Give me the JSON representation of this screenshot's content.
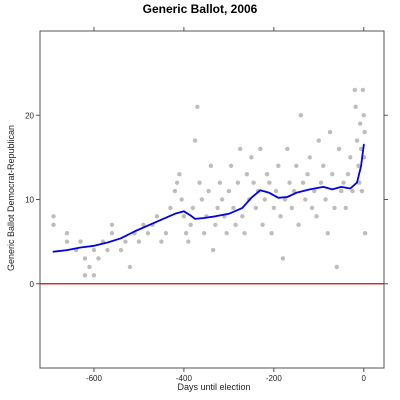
{
  "chart_data": {
    "type": "scatter",
    "title": "Generic Ballot, 2006",
    "xlabel": "Days until election",
    "ylabel": "Generic Ballot Democrat-Republican",
    "xlim": [
      -720,
      45
    ],
    "ylim": [
      -10,
      30
    ],
    "xticks": [
      -600,
      -400,
      -200,
      0
    ],
    "yticks": [
      0,
      10,
      20
    ],
    "grid": false,
    "legend": "none",
    "reference_line": {
      "y": 0,
      "color": "#e00000"
    },
    "colors": {
      "points": "#bdbdbd",
      "trend": "#0000ee",
      "axes": "#555555"
    },
    "series": [
      {
        "type": "scatter",
        "points": [
          [
            -690,
            8
          ],
          [
            -690,
            7
          ],
          [
            -660,
            6
          ],
          [
            -660,
            5
          ],
          [
            -640,
            4
          ],
          [
            -630,
            5
          ],
          [
            -620,
            1
          ],
          [
            -620,
            3
          ],
          [
            -610,
            2
          ],
          [
            -600,
            4
          ],
          [
            -600,
            1
          ],
          [
            -590,
            3
          ],
          [
            -580,
            5
          ],
          [
            -570,
            4
          ],
          [
            -560,
            6
          ],
          [
            -560,
            7
          ],
          [
            -540,
            4
          ],
          [
            -530,
            5
          ],
          [
            -520,
            2
          ],
          [
            -510,
            6
          ],
          [
            -500,
            5
          ],
          [
            -490,
            7
          ],
          [
            -480,
            6
          ],
          [
            -470,
            7
          ],
          [
            -460,
            8
          ],
          [
            -450,
            5
          ],
          [
            -440,
            6
          ],
          [
            -430,
            9
          ],
          [
            -420,
            11
          ],
          [
            -415,
            12
          ],
          [
            -410,
            13
          ],
          [
            -405,
            10
          ],
          [
            -400,
            8
          ],
          [
            -395,
            6
          ],
          [
            -390,
            5
          ],
          [
            -385,
            7
          ],
          [
            -380,
            9
          ],
          [
            -375,
            17
          ],
          [
            -370,
            21
          ],
          [
            -365,
            12
          ],
          [
            -360,
            10
          ],
          [
            -355,
            6
          ],
          [
            -350,
            8
          ],
          [
            -345,
            11
          ],
          [
            -340,
            14
          ],
          [
            -335,
            4
          ],
          [
            -330,
            7
          ],
          [
            -325,
            9
          ],
          [
            -320,
            12
          ],
          [
            -315,
            10
          ],
          [
            -310,
            8
          ],
          [
            -305,
            6
          ],
          [
            -300,
            11
          ],
          [
            -295,
            14
          ],
          [
            -290,
            9
          ],
          [
            -285,
            7
          ],
          [
            -280,
            12
          ],
          [
            -275,
            16
          ],
          [
            -270,
            8
          ],
          [
            -265,
            6
          ],
          [
            -260,
            13
          ],
          [
            -255,
            10
          ],
          [
            -250,
            15
          ],
          [
            -245,
            12
          ],
          [
            -240,
            9
          ],
          [
            -235,
            11
          ],
          [
            -230,
            16
          ],
          [
            -225,
            7
          ],
          [
            -220,
            10
          ],
          [
            -215,
            13
          ],
          [
            -210,
            12
          ],
          [
            -205,
            6
          ],
          [
            -200,
            9
          ],
          [
            -195,
            11
          ],
          [
            -190,
            14
          ],
          [
            -185,
            8
          ],
          [
            -180,
            3
          ],
          [
            -175,
            10
          ],
          [
            -170,
            16
          ],
          [
            -165,
            12
          ],
          [
            -160,
            9
          ],
          [
            -155,
            11
          ],
          [
            -150,
            14
          ],
          [
            -145,
            7
          ],
          [
            -140,
            20
          ],
          [
            -135,
            12
          ],
          [
            -130,
            10
          ],
          [
            -125,
            13
          ],
          [
            -120,
            15
          ],
          [
            -115,
            9
          ],
          [
            -110,
            11
          ],
          [
            -105,
            8
          ],
          [
            -100,
            17
          ],
          [
            -95,
            12
          ],
          [
            -90,
            14
          ],
          [
            -85,
            10
          ],
          [
            -80,
            6
          ],
          [
            -75,
            18
          ],
          [
            -70,
            13
          ],
          [
            -65,
            9
          ],
          [
            -60,
            2
          ],
          [
            -55,
            16
          ],
          [
            -50,
            11
          ],
          [
            -45,
            12
          ],
          [
            -40,
            9
          ],
          [
            -35,
            13
          ],
          [
            -30,
            15
          ],
          [
            -25,
            11
          ],
          [
            -20,
            23
          ],
          [
            -18,
            21
          ],
          [
            -15,
            17
          ],
          [
            -12,
            14
          ],
          [
            -10,
            12
          ],
          [
            -8,
            19
          ],
          [
            -6,
            16
          ],
          [
            -4,
            11
          ],
          [
            -2,
            23
          ],
          [
            0,
            20
          ],
          [
            1,
            15
          ],
          [
            2,
            18
          ],
          [
            3,
            6
          ]
        ]
      },
      {
        "type": "line",
        "points": [
          [
            -690,
            3.8
          ],
          [
            -660,
            4.0
          ],
          [
            -630,
            4.3
          ],
          [
            -600,
            4.5
          ],
          [
            -570,
            4.9
          ],
          [
            -540,
            5.4
          ],
          [
            -510,
            6.2
          ],
          [
            -480,
            6.9
          ],
          [
            -450,
            7.6
          ],
          [
            -420,
            8.3
          ],
          [
            -400,
            8.6
          ],
          [
            -385,
            8.1
          ],
          [
            -375,
            7.7
          ],
          [
            -355,
            7.8
          ],
          [
            -330,
            8.0
          ],
          [
            -300,
            8.3
          ],
          [
            -270,
            9.0
          ],
          [
            -250,
            10.2
          ],
          [
            -230,
            11.1
          ],
          [
            -210,
            10.8
          ],
          [
            -190,
            10.2
          ],
          [
            -170,
            10.3
          ],
          [
            -150,
            10.8
          ],
          [
            -120,
            11.2
          ],
          [
            -90,
            11.5
          ],
          [
            -70,
            11.2
          ],
          [
            -50,
            11.5
          ],
          [
            -30,
            11.3
          ],
          [
            -15,
            12.0
          ],
          [
            -6,
            14.0
          ],
          [
            0,
            16.5
          ]
        ]
      }
    ]
  }
}
